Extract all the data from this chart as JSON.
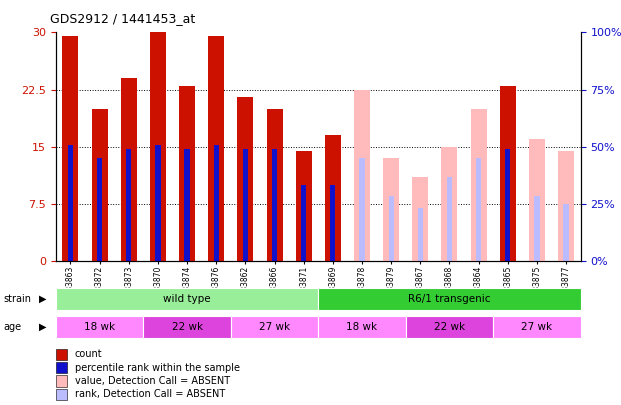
{
  "title": "GDS2912 / 1441453_at",
  "samples": [
    "GSM83863",
    "GSM83872",
    "GSM83873",
    "GSM83870",
    "GSM83874",
    "GSM83876",
    "GSM83862",
    "GSM83866",
    "GSM83871",
    "GSM83869",
    "GSM83878",
    "GSM83879",
    "GSM83867",
    "GSM83868",
    "GSM83864",
    "GSM83865",
    "GSM83875",
    "GSM83877"
  ],
  "count_values": [
    29.5,
    20.0,
    24.0,
    30.0,
    23.0,
    29.5,
    21.5,
    20.0,
    14.5,
    16.5,
    null,
    null,
    null,
    null,
    null,
    23.0,
    null,
    null
  ],
  "rank_values": [
    15.2,
    13.5,
    14.7,
    15.2,
    14.7,
    15.2,
    14.7,
    14.7,
    10.0,
    10.0,
    null,
    null,
    null,
    null,
    null,
    14.7,
    null,
    null
  ],
  "absent_count_values": [
    null,
    null,
    null,
    null,
    null,
    null,
    null,
    null,
    null,
    null,
    22.5,
    13.5,
    11.0,
    15.0,
    20.0,
    null,
    16.0,
    14.5
  ],
  "absent_rank_values": [
    null,
    null,
    null,
    null,
    null,
    null,
    null,
    null,
    null,
    null,
    13.5,
    8.5,
    7.0,
    11.0,
    13.5,
    null,
    8.5,
    7.5
  ],
  "ylim_left": [
    0,
    30
  ],
  "ylim_right": [
    0,
    100
  ],
  "yticks_left": [
    0,
    7.5,
    15.0,
    22.5,
    30
  ],
  "yticks_right": [
    0,
    25,
    50,
    75,
    100
  ],
  "ytick_labels_right": [
    "0%",
    "25%",
    "50%",
    "75%",
    "100%"
  ],
  "strain_groups": [
    {
      "label": "wild type",
      "start": 0,
      "end": 9,
      "color": "#99EE99"
    },
    {
      "label": "R6/1 transgenic",
      "start": 9,
      "end": 18,
      "color": "#33CC33"
    }
  ],
  "age_groups": [
    {
      "label": "18 wk",
      "start": 0,
      "end": 3,
      "color": "#FF88FF"
    },
    {
      "label": "22 wk",
      "start": 3,
      "end": 6,
      "color": "#DD44DD"
    },
    {
      "label": "27 wk",
      "start": 6,
      "end": 9,
      "color": "#FF88FF"
    },
    {
      "label": "18 wk",
      "start": 9,
      "end": 12,
      "color": "#FF88FF"
    },
    {
      "label": "22 wk",
      "start": 12,
      "end": 15,
      "color": "#DD44DD"
    },
    {
      "label": "27 wk",
      "start": 15,
      "end": 18,
      "color": "#FF88FF"
    }
  ],
  "color_count": "#CC1100",
  "color_rank": "#1111CC",
  "color_absent_count": "#FFBBBB",
  "color_absent_rank": "#BBBBFF",
  "legend_items": [
    {
      "label": "count",
      "color": "#CC1100"
    },
    {
      "label": "percentile rank within the sample",
      "color": "#1111CC"
    },
    {
      "label": "value, Detection Call = ABSENT",
      "color": "#FFBBBB"
    },
    {
      "label": "rank, Detection Call = ABSENT",
      "color": "#BBBBFF"
    }
  ]
}
